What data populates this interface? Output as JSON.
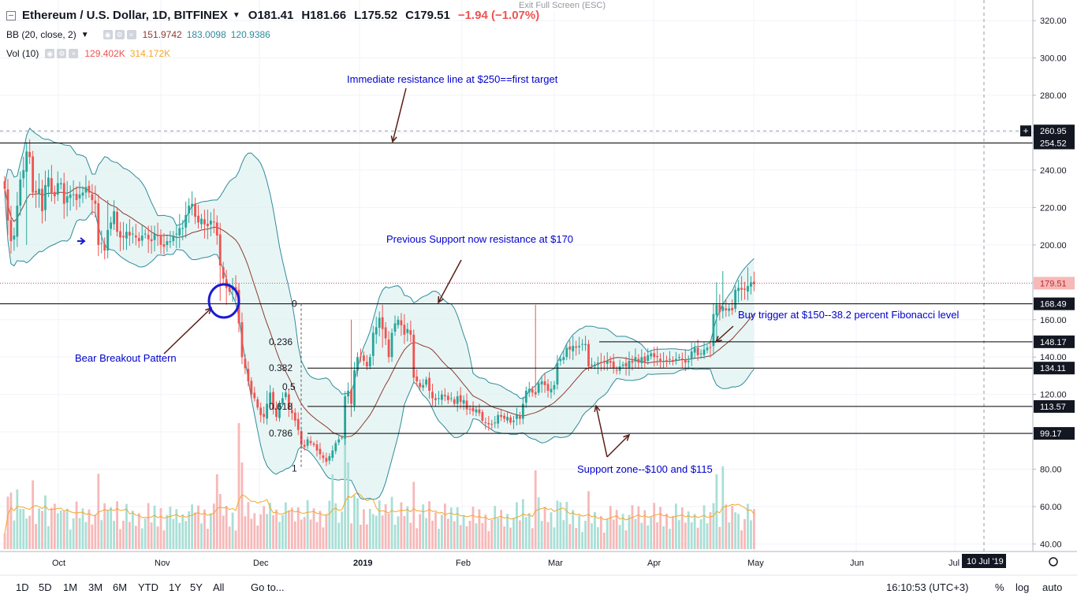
{
  "header": {
    "title": "Ethereum / U.S. Dollar, 1D, BITFINEX",
    "open": "O181.41",
    "high": "H181.66",
    "low": "L175.52",
    "close": "C179.51",
    "change": "−1.94 (−1.07%)",
    "exit_fullscreen": "Exit Full Screen (ESC)"
  },
  "indicators": {
    "bb": {
      "label": "BB (20, close, 2)",
      "v1": "151.9742",
      "v2": "183.0098",
      "v3": "120.9386"
    },
    "vol": {
      "label": "Vol (10)",
      "v1": "129.402K",
      "v2": "314.172K"
    }
  },
  "timeframes": [
    "1D",
    "5D",
    "1M",
    "3M",
    "6M",
    "YTD",
    "1Y",
    "5Y",
    "All"
  ],
  "goto_label": "Go to...",
  "clock": "16:10:53 (UTC+3)",
  "toggles": {
    "percent": "%",
    "log": "log",
    "auto": "auto"
  },
  "colors": {
    "up": "#26a69a",
    "down": "#ef5350",
    "bb_fill": "#e0f2f1",
    "bb_band": "#2e8b9a",
    "bb_basis": "#8d3b2f",
    "annotation": "#0000cc",
    "arrow": "#5a1e16"
  },
  "chart_data": {
    "type": "candlestick",
    "symbol": "ETHUSD",
    "interval": "1D",
    "x_labels": [
      "Oct",
      "Nov",
      "Dec",
      "2019",
      "Feb",
      "Mar",
      "Apr",
      "May",
      "Jun",
      "Jul"
    ],
    "y_axis_ticks": [
      40,
      60,
      80,
      100,
      120,
      140,
      160,
      180,
      200,
      220,
      240,
      260,
      280,
      300,
      320
    ],
    "ylim": [
      36,
      331
    ],
    "price_labels": [
      {
        "value": 260.95,
        "text": "260.95",
        "style": "crosshair"
      },
      {
        "value": 254.52,
        "text": "254.52",
        "style": "black"
      },
      {
        "value": 179.51,
        "text": "179.51",
        "style": "red"
      },
      {
        "value": 168.49,
        "text": "168.49",
        "style": "black"
      },
      {
        "value": 148.17,
        "text": "148.17",
        "style": "black"
      },
      {
        "value": 134.11,
        "text": "134.11",
        "style": "black"
      },
      {
        "value": 113.57,
        "text": "113.57",
        "style": "black"
      },
      {
        "value": 99.17,
        "text": "99.17",
        "style": "black"
      }
    ],
    "date_label": "10 Jul '19",
    "fib_levels": [
      {
        "label": "0",
        "value": 168.49
      },
      {
        "label": "0.236",
        "value": 148.17
      },
      {
        "label": "0.382",
        "value": 134.11
      },
      {
        "label": "0.5",
        "value": 124.0
      },
      {
        "label": "0.618",
        "value": 113.57
      },
      {
        "label": "0.786",
        "value": 99.17
      },
      {
        "label": "1",
        "value": 80.5
      }
    ],
    "annotations": [
      "Immediate resistance line at $250==first target",
      "Previous Support now resistance at $170",
      "Buy trigger at $150--38.2 percent Fibonacci level",
      "Bear Breakout Pattern",
      "Support zone--$100 and $115"
    ],
    "closes": [
      230,
      213,
      202,
      205,
      221,
      235,
      240,
      250,
      247,
      228,
      228,
      230,
      218,
      232,
      236,
      228,
      226,
      233,
      233,
      222,
      226,
      227,
      227,
      224,
      227,
      228,
      231,
      228,
      224,
      222,
      200,
      201,
      197,
      208,
      212,
      218,
      207,
      204,
      204,
      207,
      205,
      206,
      204,
      202,
      205,
      206,
      203,
      202,
      206,
      205,
      200,
      199,
      202,
      202,
      205,
      206,
      209,
      209,
      216,
      221,
      222,
      215,
      212,
      214,
      211,
      210,
      213,
      212,
      205,
      189,
      182,
      177,
      175,
      178,
      176,
      158,
      140,
      134,
      127,
      120,
      118,
      113,
      109,
      108,
      115,
      121,
      112,
      108,
      115,
      118,
      121,
      112,
      110,
      106,
      101,
      93,
      92,
      96,
      94,
      93,
      90,
      88,
      86,
      84,
      87,
      90,
      94,
      96,
      97,
      119,
      122,
      115,
      133,
      140,
      140,
      138,
      135,
      140,
      153,
      156,
      161,
      155,
      150,
      140,
      153,
      158,
      160,
      157,
      152,
      155,
      152,
      129,
      127,
      124,
      125,
      128,
      122,
      118,
      117,
      118,
      120,
      119,
      117,
      118,
      115,
      119,
      116,
      117,
      112,
      112,
      111,
      112,
      110,
      106,
      105,
      104,
      104,
      105,
      109,
      108,
      107,
      108,
      105,
      106,
      109,
      107,
      115,
      122,
      123,
      121,
      120,
      126,
      127,
      125,
      122,
      123,
      125,
      137,
      139,
      140,
      145,
      144,
      146,
      145,
      146,
      147,
      147,
      135,
      136,
      136,
      137,
      137,
      137,
      138,
      137,
      134,
      133,
      135,
      136,
      135,
      138,
      137,
      140,
      137,
      140,
      137,
      141,
      142,
      140,
      140,
      138,
      138,
      138,
      139,
      138,
      139,
      140,
      139,
      137,
      138,
      143,
      145,
      141,
      142,
      144,
      145,
      145,
      163,
      168,
      164,
      167,
      165,
      166,
      165,
      176,
      177,
      176,
      176,
      178,
      180,
      179
    ],
    "volume_unit": "K"
  }
}
